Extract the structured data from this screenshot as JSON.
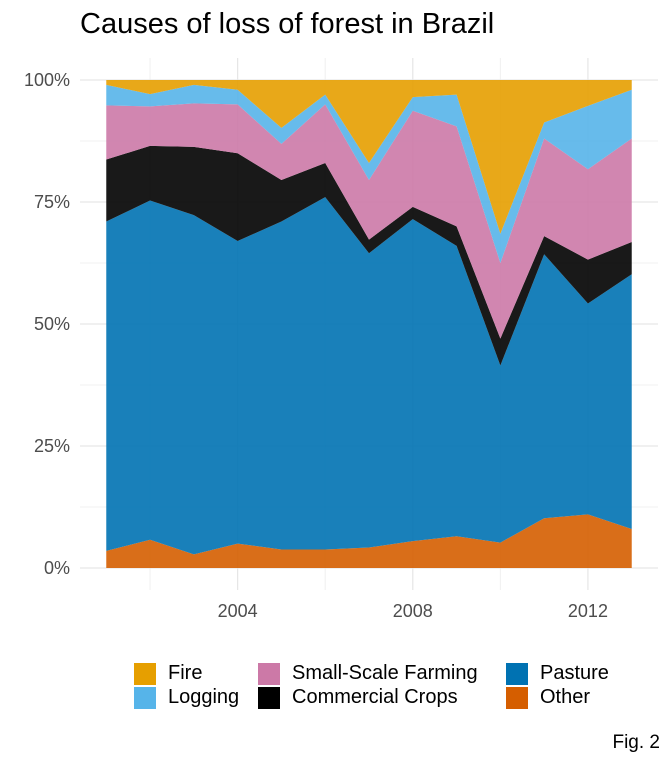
{
  "title": "Causes of loss of forest in Brazil",
  "caption": "Fig. 2",
  "chart_data": {
    "type": "area",
    "stacked": "percent",
    "title": "Causes of loss of forest in Brazil",
    "xlabel": "",
    "ylabel": "",
    "x": [
      2001,
      2002,
      2003,
      2004,
      2005,
      2006,
      2007,
      2008,
      2009,
      2010,
      2011,
      2012,
      2013
    ],
    "x_ticks": [
      2004,
      2008,
      2012
    ],
    "x_tick_labels": [
      "2004",
      "2008",
      "2012"
    ],
    "ylim": [
      0,
      100
    ],
    "y_ticks": [
      0,
      25,
      50,
      75,
      100
    ],
    "y_tick_labels": [
      "0%",
      "25%",
      "50%",
      "75%",
      "100%"
    ],
    "grid": true,
    "legend_position": "bottom",
    "series": [
      {
        "name": "Other",
        "color": "#D55E00",
        "values": [
          3.5,
          5.8,
          2.8,
          5.0,
          3.8,
          3.8,
          4.2,
          5.5,
          6.5,
          5.2,
          10.2,
          11.0,
          8.0
        ]
      },
      {
        "name": "Pasture",
        "color": "#0072B2",
        "values": [
          67.5,
          69.5,
          69.5,
          62.0,
          67.2,
          72.2,
          60.3,
          66.0,
          59.5,
          36.3,
          54.1,
          43.2,
          52.2
        ]
      },
      {
        "name": "Commercial Crops",
        "color": "#000000",
        "values": [
          12.7,
          11.2,
          14.0,
          18.0,
          8.5,
          7.0,
          2.8,
          2.5,
          4.0,
          5.5,
          3.7,
          9.0,
          6.6
        ]
      },
      {
        "name": "Small-Scale Farming",
        "color": "#CC79A7",
        "values": [
          11.1,
          8.1,
          8.9,
          10.0,
          7.4,
          12.0,
          12.2,
          19.7,
          20.5,
          15.5,
          20.0,
          18.5,
          21.2
        ]
      },
      {
        "name": "Logging",
        "color": "#56B4E9",
        "values": [
          4.2,
          2.5,
          3.8,
          3.0,
          3.3,
          2.0,
          3.5,
          2.8,
          6.5,
          6.0,
          3.3,
          13.0,
          10.0
        ]
      },
      {
        "name": "Fire",
        "color": "#E69F00",
        "values": [
          1.0,
          2.9,
          1.0,
          2.0,
          9.8,
          3.0,
          17.0,
          3.5,
          3.0,
          31.5,
          8.7,
          5.3,
          2.0
        ]
      }
    ]
  },
  "legend": [
    {
      "name": "Fire",
      "color": "#E69F00"
    },
    {
      "name": "Small-Scale Farming",
      "color": "#CC79A7"
    },
    {
      "name": "Pasture",
      "color": "#0072B2"
    },
    {
      "name": "Logging",
      "color": "#56B4E9"
    },
    {
      "name": "Commercial Crops",
      "color": "#000000"
    },
    {
      "name": "Other",
      "color": "#D55E00"
    }
  ]
}
